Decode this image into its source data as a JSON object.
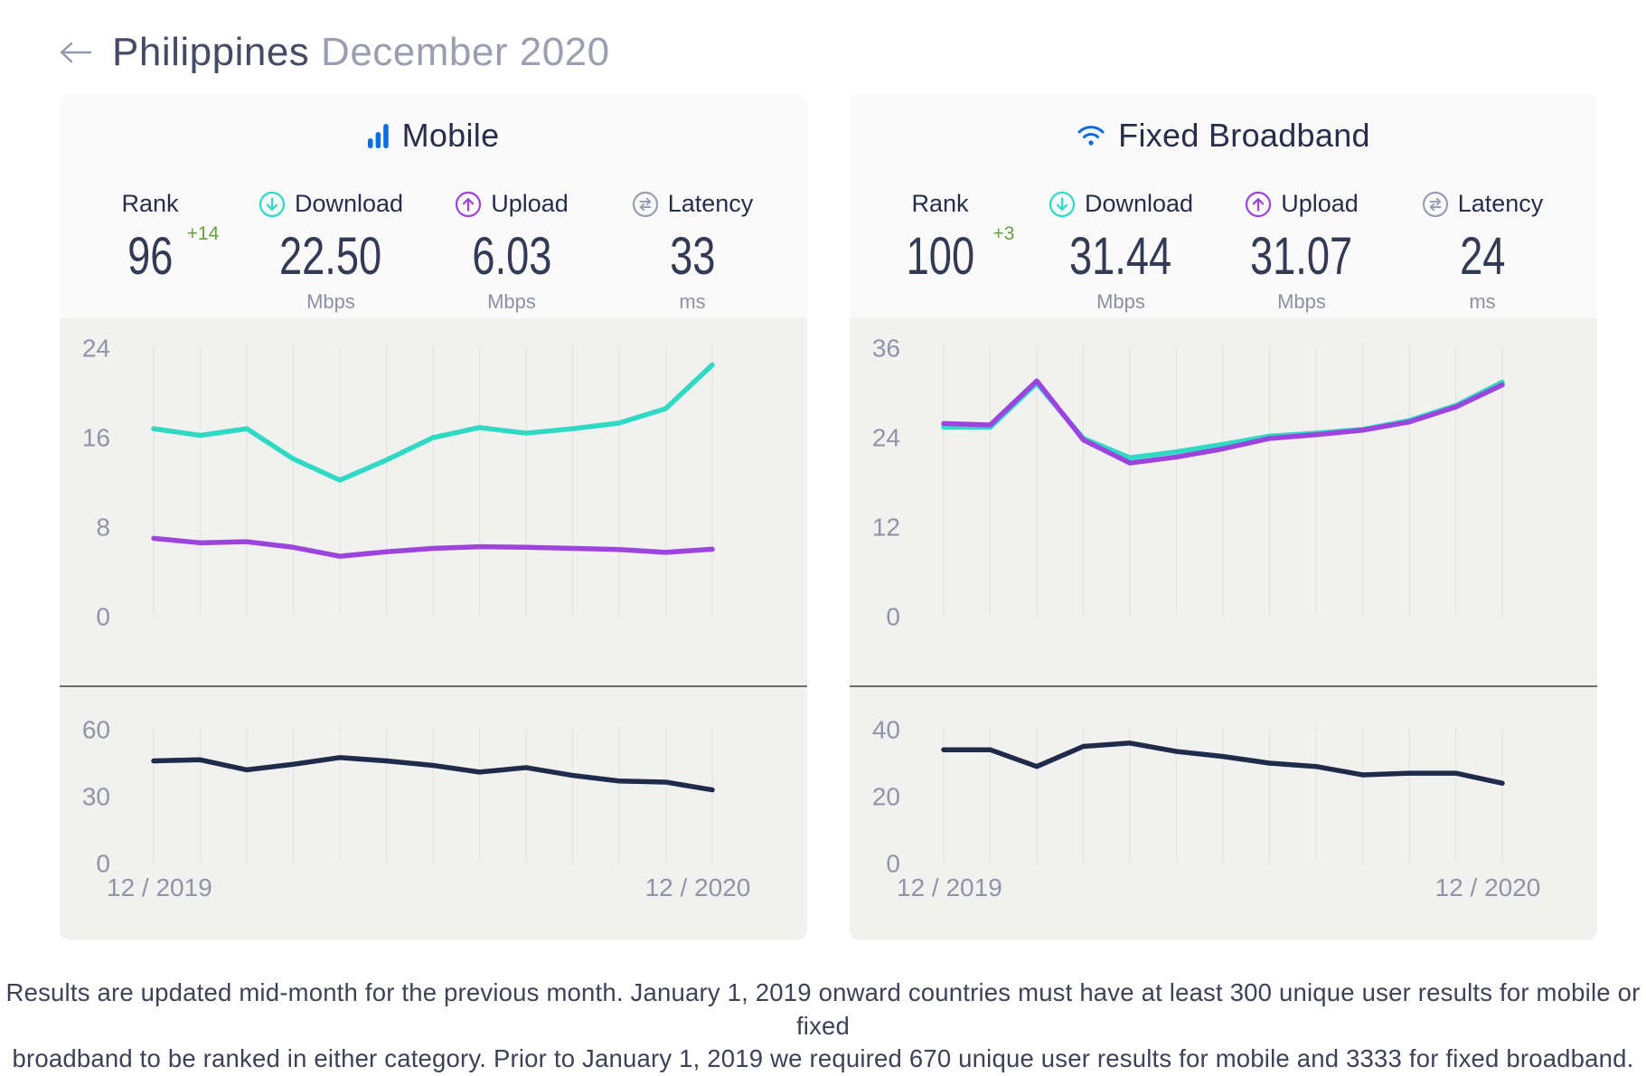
{
  "header": {
    "back_icon": "left-arrow",
    "country": "Philippines",
    "period": "December 2020"
  },
  "colors": {
    "download_teal": "#2edac4",
    "upload_purple": "#9d44df",
    "latency_navy": "#202a4a",
    "brand_blue": "#0c6ce4",
    "rank_green": "#68a03f",
    "axis_gray": "#9094a6",
    "gridline": "#e5e5e3",
    "chart_bg": "#f1f1ef",
    "header_bg": "#fafafa"
  },
  "cards": [
    {
      "id": "mobile",
      "title": "Mobile",
      "title_icon": "mobile-bars-icon",
      "stats": {
        "rank": {
          "label": "Rank",
          "value": "96",
          "change": "+14",
          "unit": ""
        },
        "download": {
          "label": "Download",
          "value": "22.50",
          "unit": "Mbps",
          "icon": "download-circle-icon"
        },
        "upload": {
          "label": "Upload",
          "value": "6.03",
          "unit": "Mbps",
          "icon": "upload-circle-icon"
        },
        "latency": {
          "label": "Latency",
          "value": "33",
          "unit": "ms",
          "icon": "latency-arrows-icon"
        }
      }
    },
    {
      "id": "fixed",
      "title": "Fixed Broadband",
      "title_icon": "wifi-icon",
      "stats": {
        "rank": {
          "label": "Rank",
          "value": "100",
          "change": "+3",
          "unit": ""
        },
        "download": {
          "label": "Download",
          "value": "31.44",
          "unit": "Mbps",
          "icon": "download-circle-icon"
        },
        "upload": {
          "label": "Upload",
          "value": "31.07",
          "unit": "Mbps",
          "icon": "upload-circle-icon"
        },
        "latency": {
          "label": "Latency",
          "value": "24",
          "unit": "ms",
          "icon": "latency-arrows-icon"
        }
      }
    }
  ],
  "chart_data": [
    {
      "id": "mobile",
      "type": "line",
      "x": [
        "12/2019",
        "1/2020",
        "2/2020",
        "3/2020",
        "4/2020",
        "5/2020",
        "6/2020",
        "7/2020",
        "8/2020",
        "9/2020",
        "10/2020",
        "11/2020",
        "12/2020"
      ],
      "x_tick_labels": [
        "12 / 2019",
        "12 / 2020"
      ],
      "grid": true,
      "legend_position": "none",
      "panels": [
        {
          "name": "speed",
          "ylabel": "Mbps",
          "ylim": [
            0,
            24
          ],
          "yticks": [
            24,
            16,
            8,
            0
          ],
          "series": [
            {
              "name": "Download",
              "color": "#2edac4",
              "values": [
                16.8,
                16.2,
                16.8,
                14.1,
                12.2,
                14.0,
                16.0,
                16.9,
                16.4,
                16.8,
                17.3,
                18.6,
                22.5
              ]
            },
            {
              "name": "Upload",
              "color": "#9d44df",
              "values": [
                7.0,
                6.6,
                6.7,
                6.2,
                5.4,
                5.8,
                6.1,
                6.25,
                6.2,
                6.1,
                6.0,
                5.75,
                6.03
              ]
            }
          ]
        },
        {
          "name": "latency",
          "ylabel": "ms",
          "ylim": [
            0,
            60
          ],
          "yticks": [
            60,
            30,
            0
          ],
          "series": [
            {
              "name": "Latency",
              "color": "#202a4a",
              "values": [
                46,
                46.5,
                42,
                44.5,
                47.5,
                46,
                44,
                41,
                43,
                39.5,
                37,
                36.5,
                33
              ]
            }
          ]
        }
      ]
    },
    {
      "id": "fixed",
      "type": "line",
      "x": [
        "12/2019",
        "1/2020",
        "2/2020",
        "3/2020",
        "4/2020",
        "5/2020",
        "6/2020",
        "7/2020",
        "8/2020",
        "9/2020",
        "10/2020",
        "11/2020",
        "12/2020"
      ],
      "x_tick_labels": [
        "12 / 2019",
        "12 / 2020"
      ],
      "grid": true,
      "legend_position": "none",
      "panels": [
        {
          "name": "speed",
          "ylabel": "Mbps",
          "ylim": [
            0,
            36
          ],
          "yticks": [
            36,
            24,
            12,
            0
          ],
          "series": [
            {
              "name": "Download",
              "color": "#2edac4",
              "values": [
                25.4,
                25.4,
                31.3,
                23.9,
                21.3,
                22.1,
                23.1,
                24.2,
                24.6,
                25.1,
                26.3,
                28.3,
                31.44
              ]
            },
            {
              "name": "Upload",
              "color": "#9d44df",
              "values": [
                25.9,
                25.7,
                31.6,
                23.7,
                20.6,
                21.4,
                22.5,
                23.9,
                24.4,
                25.0,
                26.1,
                28.1,
                31.07
              ]
            }
          ]
        },
        {
          "name": "latency",
          "ylabel": "ms",
          "ylim": [
            0,
            40
          ],
          "yticks": [
            40,
            20,
            0
          ],
          "series": [
            {
              "name": "Latency",
              "color": "#202a4a",
              "values": [
                34,
                34,
                29,
                35,
                36,
                33.5,
                32,
                30,
                29,
                26.5,
                27,
                27,
                24
              ]
            }
          ]
        }
      ]
    }
  ],
  "footer": {
    "line1": "Results are updated mid-month for the previous month. January 1, 2019 onward countries must have at least 300 unique user results for mobile or fixed",
    "line2": "broadband to be ranked in either category. Prior to January 1, 2019 we required 670 unique user results for mobile and 3333 for fixed broadband."
  }
}
